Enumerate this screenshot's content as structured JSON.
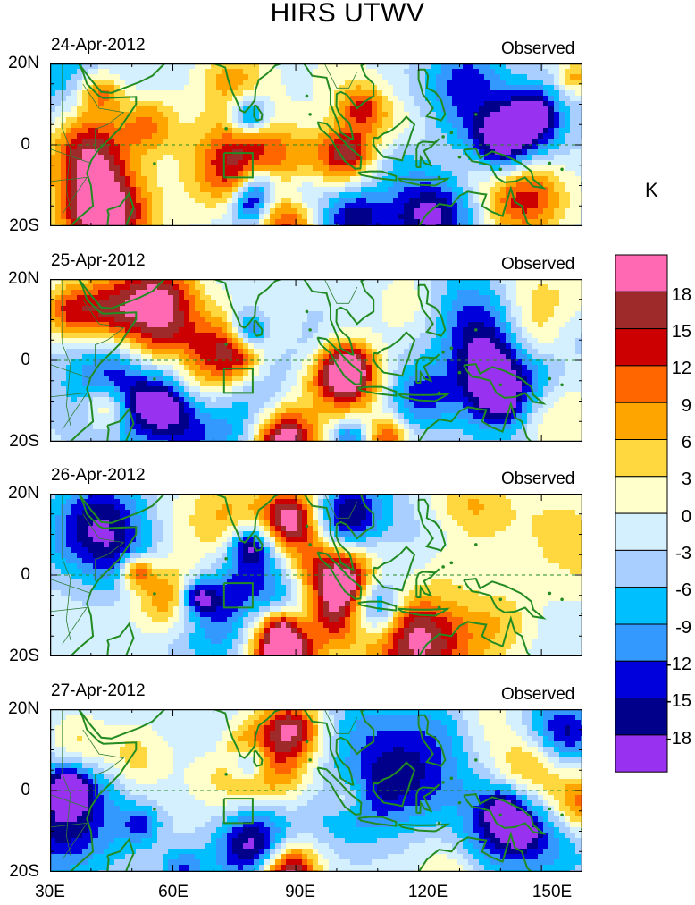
{
  "title": "HIRS UTWV",
  "panels": [
    {
      "date": "24-Apr-2012",
      "label": "Observed",
      "seed": 11
    },
    {
      "date": "25-Apr-2012",
      "label": "Observed",
      "seed": 23
    },
    {
      "date": "26-Apr-2012",
      "label": "Observed",
      "seed": 37
    },
    {
      "date": "27-Apr-2012",
      "label": "Observed",
      "seed": 53
    }
  ],
  "lat_labels": [
    "20N",
    "0",
    "20S"
  ],
  "lon_labels": [
    "30E",
    "60E",
    "90E",
    "120E",
    "150E"
  ],
  "colorbar": {
    "unit": "K",
    "levels": [
      "18",
      "15",
      "12",
      "9",
      "6",
      "3",
      "0",
      "-3",
      "-6",
      "-9",
      "-12",
      "-15",
      "-18"
    ],
    "colors": [
      "#ff69b4",
      "#9e2a2a",
      "#cc0000",
      "#ff6600",
      "#ffa500",
      "#ffd840",
      "#ffffcc",
      "#d4f0ff",
      "#a8cfff",
      "#00bfff",
      "#3399ff",
      "#0000dd",
      "#00008b",
      "#9932f0"
    ]
  }
}
